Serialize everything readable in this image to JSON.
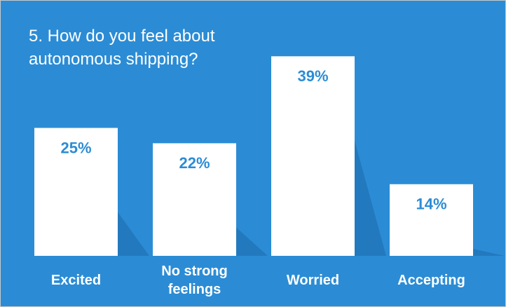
{
  "chart_data": {
    "type": "bar",
    "title": "5. How do you feel about autonomous shipping?",
    "categories": [
      "Excited",
      "No strong feelings",
      "Worried",
      "Accepting"
    ],
    "values": [
      25,
      22,
      39,
      14
    ],
    "value_labels": [
      "25%",
      "22%",
      "39%",
      "14%"
    ],
    "color": "#ffffff"
  }
}
